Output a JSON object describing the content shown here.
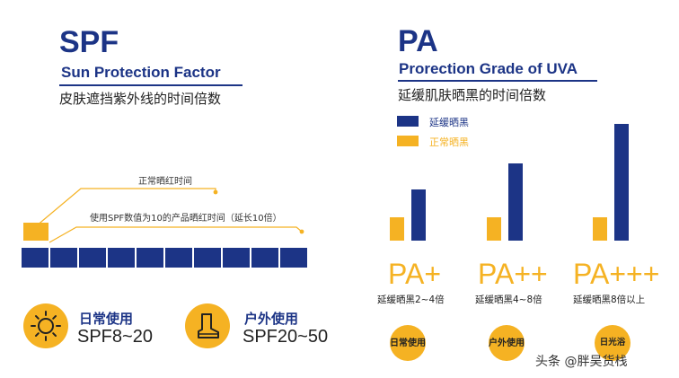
{
  "spf": {
    "title": "SPF",
    "subtitle_en": "Sun Protection Factor",
    "subtitle_cn": "皮肤遮挡紫外线的时间倍数",
    "label_normal": "正常晒红时间",
    "label_spf": "使用SPF数值为10的产品晒红时间（延长10倍）",
    "segment_count": 10,
    "uses": [
      {
        "icon": "sun-icon",
        "title": "日常使用",
        "value": "SPF8~20"
      },
      {
        "icon": "boot-icon",
        "title": "户外使用",
        "value": "SPF20~50"
      }
    ]
  },
  "pa": {
    "title": "PA",
    "subtitle_en": "Prorection Grade of UVA",
    "subtitle_cn": "延缓肌肤晒黑的时间倍数",
    "legend": [
      {
        "label": "延缓晒黑",
        "color": "#1c3486"
      },
      {
        "label": "正常晒黑",
        "color": "#f5b223"
      }
    ],
    "groups": [
      {
        "label": "PA+",
        "desc": "延缓晒黑2~4倍",
        "use": "日常使用",
        "normal": 1,
        "delayed": 2.2
      },
      {
        "label": "PA++",
        "desc": "延缓晒黑4~8倍",
        "use": "户外使用",
        "normal": 1,
        "delayed": 3.3
      },
      {
        "label": "PA+++",
        "desc": "延缓晒黑8倍以上",
        "use": "日光浴",
        "normal": 1,
        "delayed": 5.0
      }
    ]
  },
  "colors": {
    "blue": "#1c3486",
    "orange": "#f5b223"
  },
  "watermark": "头条 @胖吴货栈"
}
